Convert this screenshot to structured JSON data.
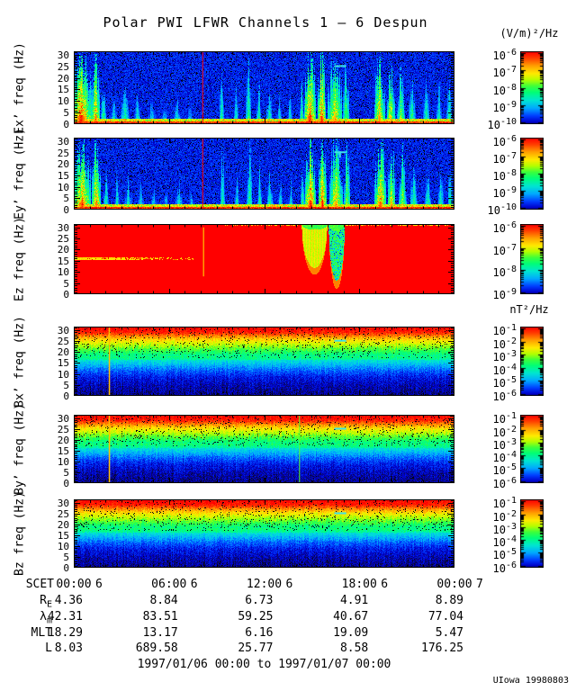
{
  "chart_data": {
    "type": "heatmap",
    "title": "Polar PWI LFWR Channels 1 — 6 Despun",
    "units": {
      "electric": "(V/m)²/Hz",
      "magnetic": "nT²/Hz"
    },
    "freq_axis": {
      "ticks": [
        0,
        5,
        10,
        15,
        20,
        25,
        30
      ],
      "max": 31.5
    },
    "time_axis": {
      "label": "SCET",
      "hours": [
        0,
        6,
        12,
        18,
        24
      ],
      "tick_labels": [
        {
          "time": "00:00",
          "day": "6"
        },
        {
          "time": "06:00",
          "day": "6"
        },
        {
          "time": "12:00",
          "day": "6"
        },
        {
          "time": "18:00",
          "day": "6"
        },
        {
          "time": "00:00",
          "day": "7"
        }
      ]
    },
    "panels": [
      {
        "id": "ex",
        "ylabel": "Ex’ freq (Hz)",
        "kind": "electric",
        "seed": 11,
        "colorbar_exponents": [
          "-6",
          "-7",
          "-8",
          "-9",
          "-10"
        ],
        "bursts": [
          [
            0.45,
            1.3,
            1.0,
            1.0
          ],
          [
            1.35,
            0.55,
            0.95,
            0.9
          ],
          [
            1.85,
            0.3,
            0.7,
            0.6
          ],
          [
            2.5,
            0.35,
            0.5,
            0.5
          ],
          [
            3.2,
            0.6,
            0.45,
            0.55
          ],
          [
            4.0,
            0.4,
            0.4,
            0.5
          ],
          [
            4.9,
            0.5,
            0.33,
            0.45
          ],
          [
            5.7,
            0.4,
            0.3,
            0.45
          ],
          [
            6.5,
            0.5,
            0.35,
            0.5
          ],
          [
            7.3,
            0.35,
            0.3,
            0.45
          ],
          [
            9.3,
            0.3,
            0.8,
            0.55
          ],
          [
            10.2,
            0.3,
            0.5,
            0.5
          ],
          [
            11.0,
            0.35,
            0.9,
            0.6
          ],
          [
            11.65,
            0.3,
            0.6,
            0.55
          ],
          [
            12.3,
            0.4,
            0.55,
            0.55
          ],
          [
            12.95,
            0.3,
            0.45,
            0.5
          ],
          [
            13.6,
            0.3,
            0.4,
            0.5
          ],
          [
            14.35,
            0.25,
            0.6,
            0.6
          ],
          [
            14.85,
            0.75,
            1.0,
            1.0
          ],
          [
            15.6,
            0.55,
            1.0,
            1.0
          ],
          [
            16.45,
            0.9,
            1.0,
            0.85
          ],
          [
            17.15,
            0.4,
            0.9,
            0.7
          ],
          [
            19.25,
            0.65,
            0.95,
            0.9
          ],
          [
            19.95,
            0.5,
            0.85,
            0.85
          ],
          [
            20.6,
            0.5,
            0.7,
            0.7
          ],
          [
            21.3,
            0.45,
            0.6,
            0.6
          ],
          [
            22.2,
            0.4,
            0.55,
            0.55
          ],
          [
            23.0,
            0.35,
            0.6,
            0.5
          ],
          [
            23.65,
            0.35,
            0.7,
            0.55
          ]
        ],
        "vlines": [
          {
            "t": 8.1,
            "v": 1.0,
            "w": 1,
            "f0": 0,
            "f1": 31.5
          }
        ],
        "marker": {
          "t": 16.8,
          "f": 25.5,
          "len": 0.75,
          "tail": false
        }
      },
      {
        "id": "ey",
        "ylabel": "Ey’ freq (Hz)",
        "kind": "electric",
        "seed": 22,
        "colorbar_exponents": [
          "-6",
          "-7",
          "-8",
          "-9",
          "-10"
        ],
        "bursts": [
          [
            0.5,
            1.1,
            1.0,
            0.95
          ],
          [
            1.4,
            0.6,
            0.95,
            0.9
          ],
          [
            2.0,
            0.35,
            0.6,
            0.55
          ],
          [
            2.7,
            0.3,
            0.45,
            0.5
          ],
          [
            3.4,
            0.5,
            0.4,
            0.5
          ],
          [
            4.2,
            0.4,
            0.35,
            0.45
          ],
          [
            5.0,
            0.45,
            0.3,
            0.45
          ],
          [
            5.8,
            0.4,
            0.3,
            0.42
          ],
          [
            6.6,
            0.5,
            0.35,
            0.5
          ],
          [
            7.4,
            0.3,
            0.3,
            0.45
          ],
          [
            9.35,
            0.3,
            0.85,
            0.55
          ],
          [
            10.25,
            0.3,
            0.5,
            0.5
          ],
          [
            11.05,
            0.35,
            0.9,
            0.6
          ],
          [
            11.7,
            0.3,
            0.6,
            0.55
          ],
          [
            12.35,
            0.4,
            0.5,
            0.55
          ],
          [
            13.0,
            0.3,
            0.45,
            0.5
          ],
          [
            13.65,
            0.3,
            0.4,
            0.5
          ],
          [
            14.4,
            0.25,
            0.6,
            0.6
          ],
          [
            14.9,
            0.7,
            1.0,
            1.0
          ],
          [
            15.65,
            0.5,
            1.0,
            1.0
          ],
          [
            16.5,
            0.85,
            1.0,
            0.85
          ],
          [
            17.2,
            0.4,
            0.9,
            0.7
          ],
          [
            19.3,
            0.7,
            1.0,
            0.95
          ],
          [
            20.0,
            0.5,
            0.9,
            0.85
          ],
          [
            20.7,
            0.5,
            0.75,
            0.7
          ],
          [
            21.4,
            0.45,
            0.6,
            0.6
          ],
          [
            22.3,
            0.4,
            0.55,
            0.55
          ],
          [
            23.1,
            0.35,
            0.65,
            0.55
          ],
          [
            23.7,
            0.3,
            0.7,
            0.55
          ]
        ],
        "vlines": [
          {
            "t": 8.1,
            "v": 1.0,
            "w": 1,
            "f0": 0,
            "f1": 31.5
          }
        ],
        "marker": {
          "t": 16.8,
          "f": 25.5,
          "len": 0.75,
          "tail": true
        }
      },
      {
        "id": "ez",
        "ylabel": "Ez freq (Hz)",
        "kind": "saturated",
        "seed": 33,
        "colorbar_exponents": [
          "-6",
          "-7",
          "-8",
          "-9"
        ],
        "streak": {
          "f": 16.3,
          "t_end": 7.6
        },
        "top_dots_from": 9.5,
        "plumes": [
          {
            "t": 15.15,
            "hw": 0.8,
            "depth": 0.62,
            "speckled": false
          },
          {
            "t": 16.55,
            "hw": 0.5,
            "depth": 0.8,
            "speckled": true
          }
        ],
        "vlines": [
          {
            "t": 8.15,
            "v": 0.72,
            "w": 1,
            "f0": 8,
            "f1": 30
          }
        ],
        "marker": null
      },
      {
        "id": "bx",
        "ylabel": "Bx’ freq (Hz)",
        "kind": "magnetic",
        "seed": 44,
        "colorbar_exponents": [
          "-1",
          "-2",
          "-3",
          "-4",
          "-5",
          "-6"
        ],
        "vlines": [
          {
            "t": 2.2,
            "v": 0.78,
            "w": 1.5,
            "f0": 0,
            "f1": 31.5
          }
        ],
        "marker": {
          "t": 16.8,
          "f": 25.5,
          "len": 0.75,
          "tail": false
        }
      },
      {
        "id": "by",
        "ylabel": "By’ freq (Hz)",
        "kind": "magnetic",
        "seed": 55,
        "colorbar_exponents": [
          "-1",
          "-2",
          "-3",
          "-4",
          "-5",
          "-6"
        ],
        "vlines": [
          {
            "t": 2.2,
            "v": 0.78,
            "w": 1.5,
            "f0": 0,
            "f1": 31.5
          },
          {
            "t": 14.2,
            "v": 0.58,
            "w": 1,
            "f0": 0,
            "f1": 31.5
          }
        ],
        "marker": {
          "t": 16.8,
          "f": 25.5,
          "len": 0.75,
          "tail": false
        }
      },
      {
        "id": "bz",
        "ylabel": "Bz freq (Hz)",
        "kind": "magnetic",
        "seed": 66,
        "colorbar_exponents": [
          "-1",
          "-2",
          "-3",
          "-4",
          "-5",
          "-6"
        ],
        "vlines": [],
        "marker": {
          "t": 16.8,
          "f": 25.5,
          "len": 0.75,
          "tail": false
        }
      }
    ],
    "ephemeris": {
      "rows": [
        {
          "label": "R",
          "sub": "E",
          "values": [
            "4.36",
            "8.84",
            "6.73",
            "4.91",
            "8.89"
          ]
        },
        {
          "label": "λ",
          "sub": "m",
          "values": [
            "42.31",
            "83.51",
            "59.25",
            "40.67",
            "77.04"
          ]
        },
        {
          "label": "MLT",
          "sub": "",
          "values": [
            "18.29",
            "13.17",
            "6.16",
            "19.09",
            "5.47"
          ]
        },
        {
          "label": "L",
          "sub": "",
          "values": [
            "8.03",
            "689.58",
            "25.77",
            "8.58",
            "176.25"
          ]
        }
      ]
    },
    "footer": {
      "date_range": "1997/01/06 00:00 to 1997/01/07 00:00",
      "credit": "UIowa 19980803"
    }
  }
}
